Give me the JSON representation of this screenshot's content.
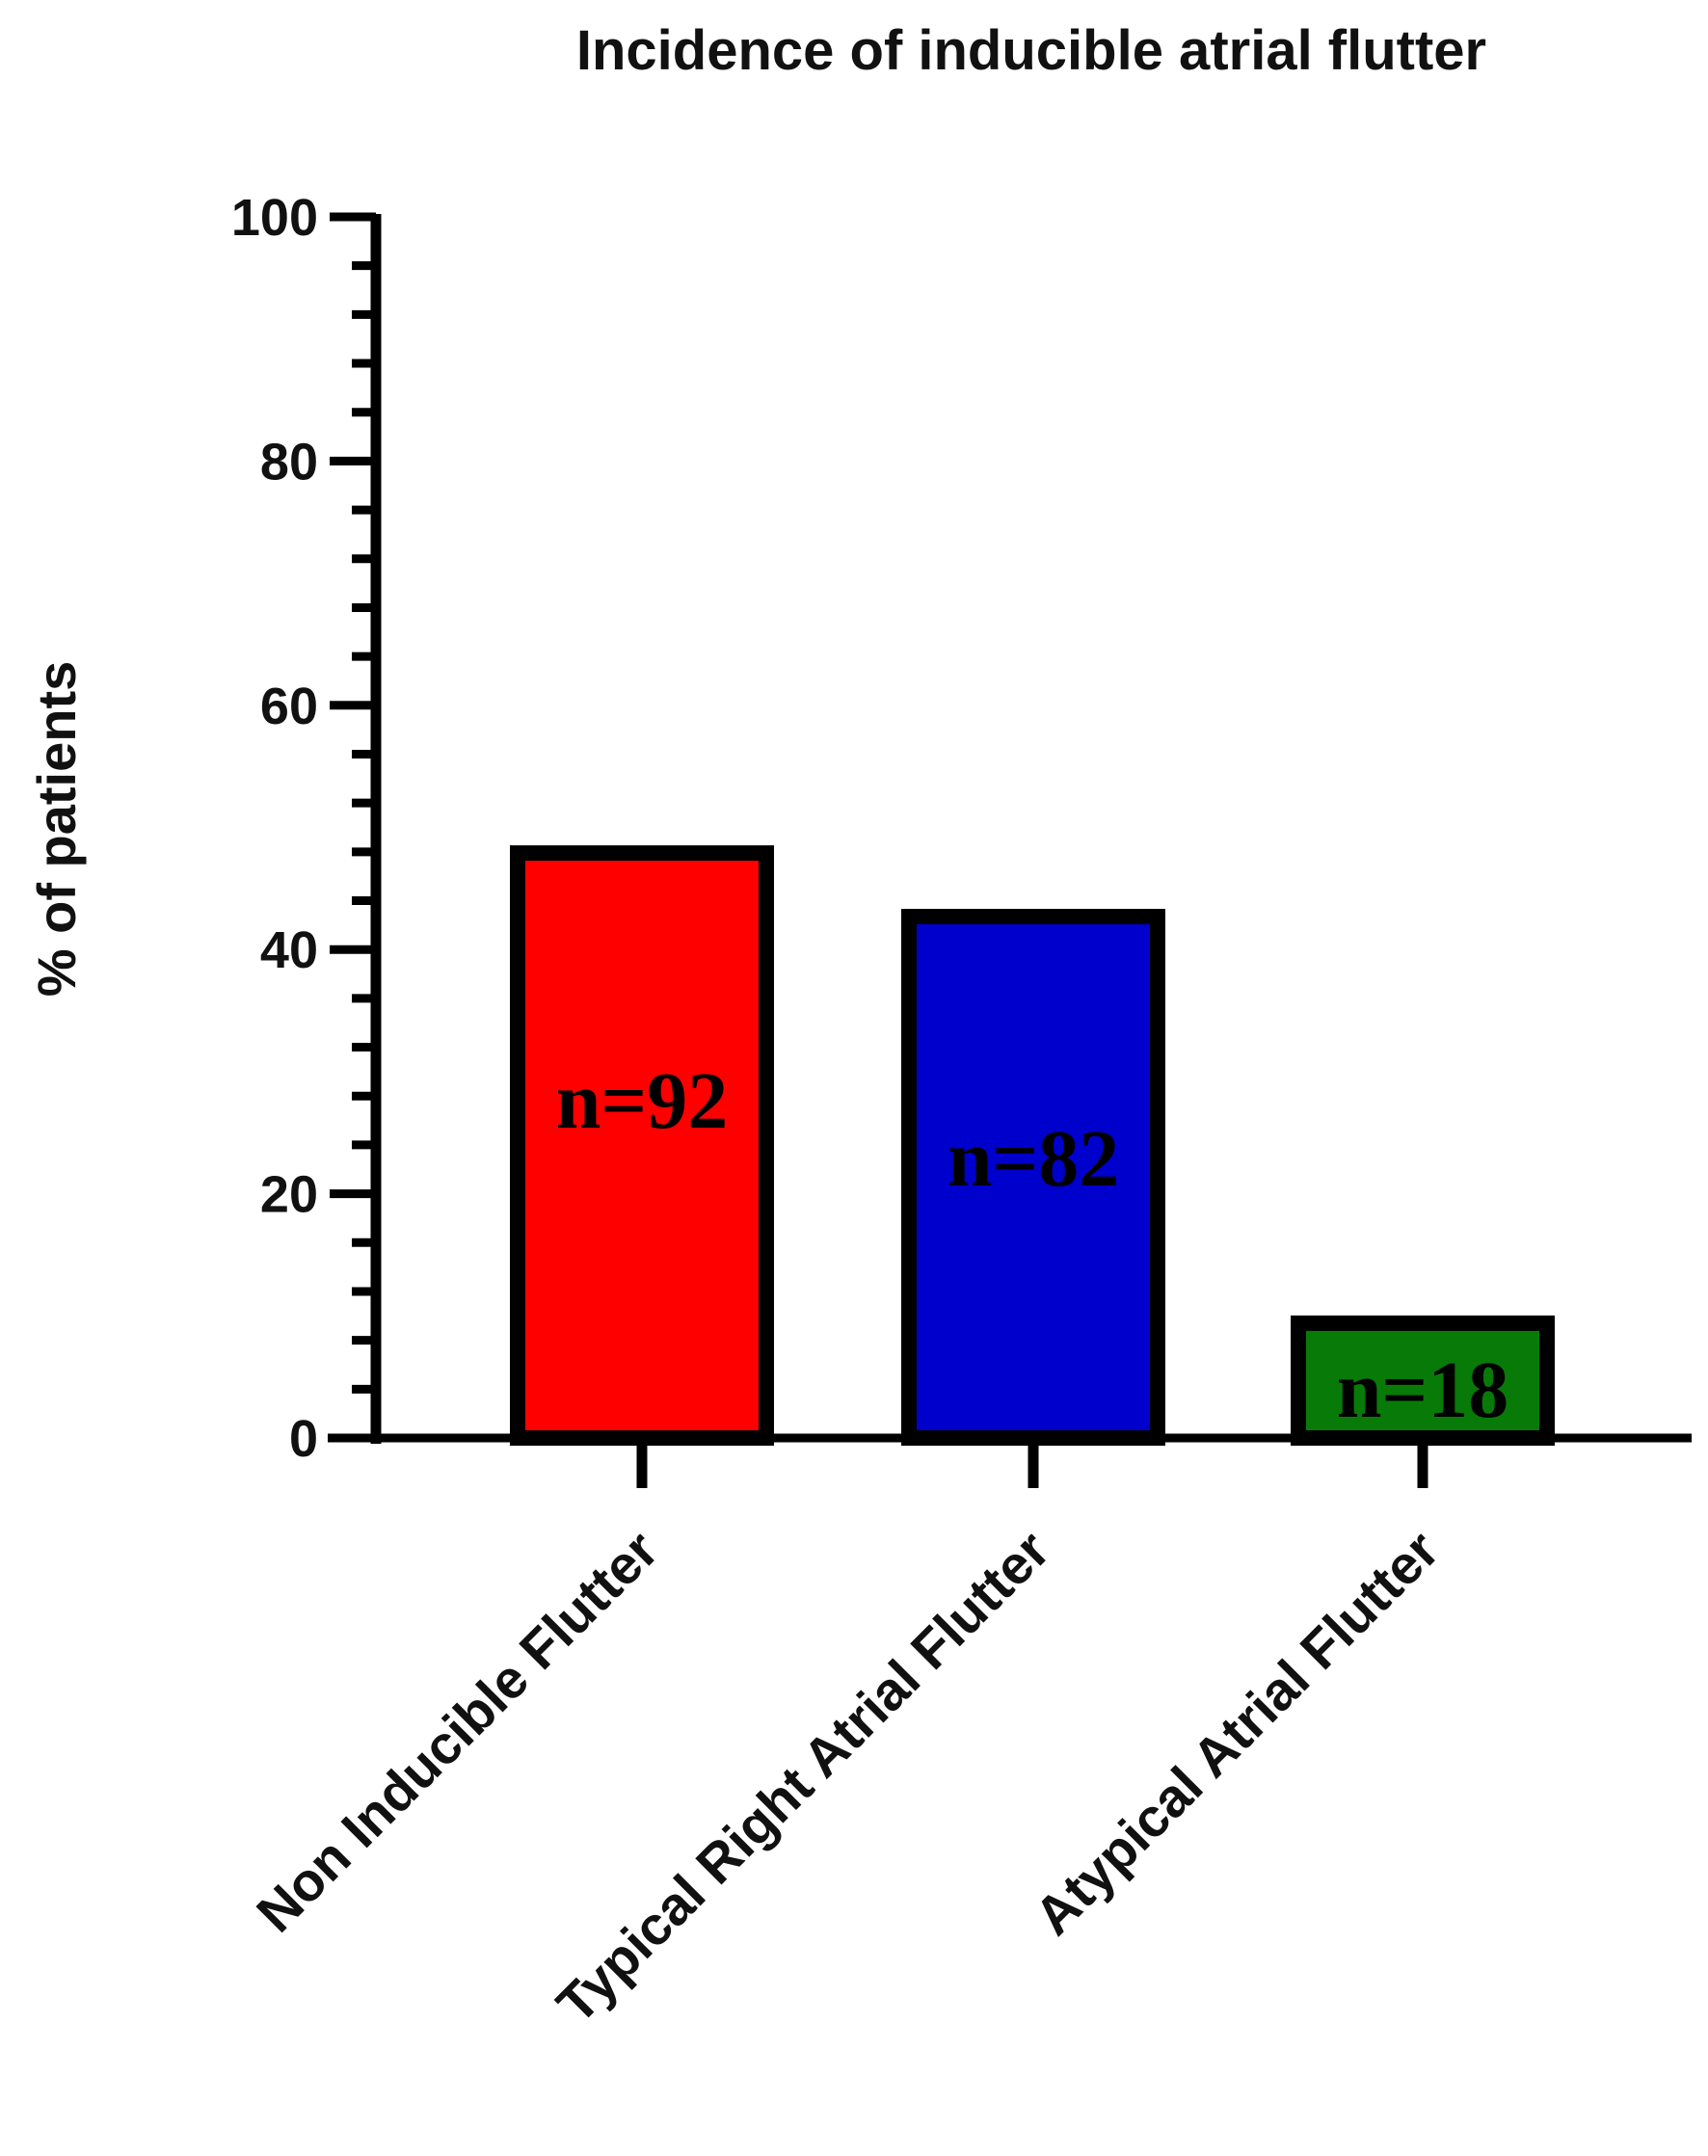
{
  "chart_data": {
    "type": "bar",
    "title": "Incidence of inducible atrial flutter",
    "xlabel": "",
    "ylabel": "% of patients",
    "ylim": [
      0,
      100
    ],
    "yticks": [
      0,
      20,
      40,
      60,
      80,
      100
    ],
    "minor_tick_step": 4,
    "grid": false,
    "categories": [
      "Non Inducible Flutter",
      "Typical Right Atrial Flutter",
      "Atypical Atrial Flutter"
    ],
    "values": [
      47.9,
      42.7,
      9.4
    ],
    "bar_labels": [
      "n=92",
      "n=82",
      "n=18"
    ],
    "colors": [
      "#ff0000",
      "#0000cc",
      "#087a08"
    ]
  }
}
